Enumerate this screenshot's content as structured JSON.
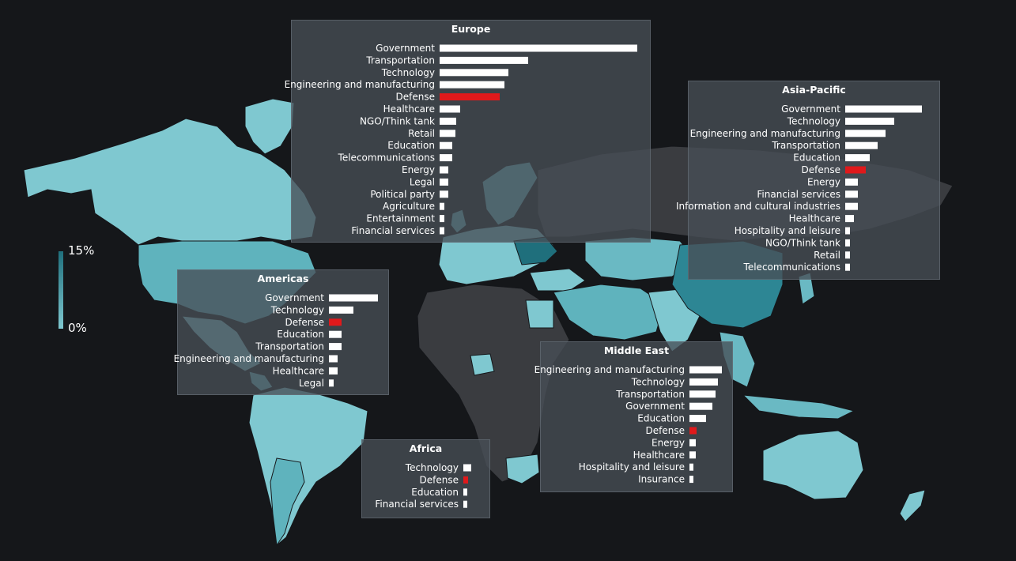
{
  "colors": {
    "bar": "#ffffff",
    "highlight": "#e0191b",
    "scale_low": "#7fc8d0",
    "scale_high": "#1f6f7c",
    "no_data": "#3a3c40"
  },
  "legend": {
    "max_label": "15%",
    "min_label": "0%"
  },
  "chart_data": [
    {
      "type": "bar",
      "region": "Europe",
      "title": "Europe",
      "highlight": "Defense",
      "categories": [
        "Government",
        "Transportation",
        "Technology",
        "Engineering and manufacturing",
        "Defense",
        "Healthcare",
        "NGO/Think tank",
        "Retail",
        "Education",
        "Telecommunications",
        "Energy",
        "Legal",
        "Political party",
        "Agriculture",
        "Entertainment",
        "Financial services"
      ],
      "values": [
        25,
        11.2,
        8.7,
        8.2,
        7.6,
        2.6,
        2.1,
        2.0,
        1.6,
        1.6,
        1.1,
        1.1,
        1.1,
        0.6,
        0.6,
        0.6
      ]
    },
    {
      "type": "bar",
      "region": "Asia-Pacific",
      "title": "Asia-Pacific",
      "highlight": "Defense",
      "categories": [
        "Government",
        "Technology",
        "Engineering and manufacturing",
        "Transportation",
        "Education",
        "Defense",
        "Energy",
        "Financial services",
        "Information and cultural industries",
        "Healthcare",
        "Hospitality and leisure",
        "NGO/Think tank",
        "Retail",
        "Telecommunications"
      ],
      "values": [
        9.7,
        6.2,
        5.1,
        4.1,
        3.1,
        2.6,
        1.6,
        1.6,
        1.6,
        1.1,
        0.6,
        0.6,
        0.6,
        0.6
      ]
    },
    {
      "type": "bar",
      "region": "Americas",
      "title": "Americas",
      "highlight": "Defense",
      "categories": [
        "Government",
        "Technology",
        "Defense",
        "Education",
        "Transportation",
        "Engineering and manufacturing",
        "Healthcare",
        "Legal"
      ],
      "values": [
        6.2,
        3.1,
        1.6,
        1.6,
        1.6,
        1.1,
        1.1,
        0.6
      ]
    },
    {
      "type": "bar",
      "region": "Middle East",
      "title": "Middle East",
      "highlight": "Defense",
      "categories": [
        "Engineering and manufacturing",
        "Technology",
        "Transportation",
        "Government",
        "Education",
        "Defense",
        "Energy",
        "Healthcare",
        "Hospitality and leisure",
        "Insurance"
      ],
      "values": [
        4.1,
        3.6,
        3.3,
        2.9,
        2.1,
        0.9,
        0.8,
        0.8,
        0.5,
        0.5
      ]
    },
    {
      "type": "bar",
      "region": "Africa",
      "title": "Africa",
      "highlight": "Defense",
      "categories": [
        "Technology",
        "Defense",
        "Education",
        "Financial services"
      ],
      "values": [
        1.0,
        0.6,
        0.5,
        0.5
      ]
    }
  ]
}
